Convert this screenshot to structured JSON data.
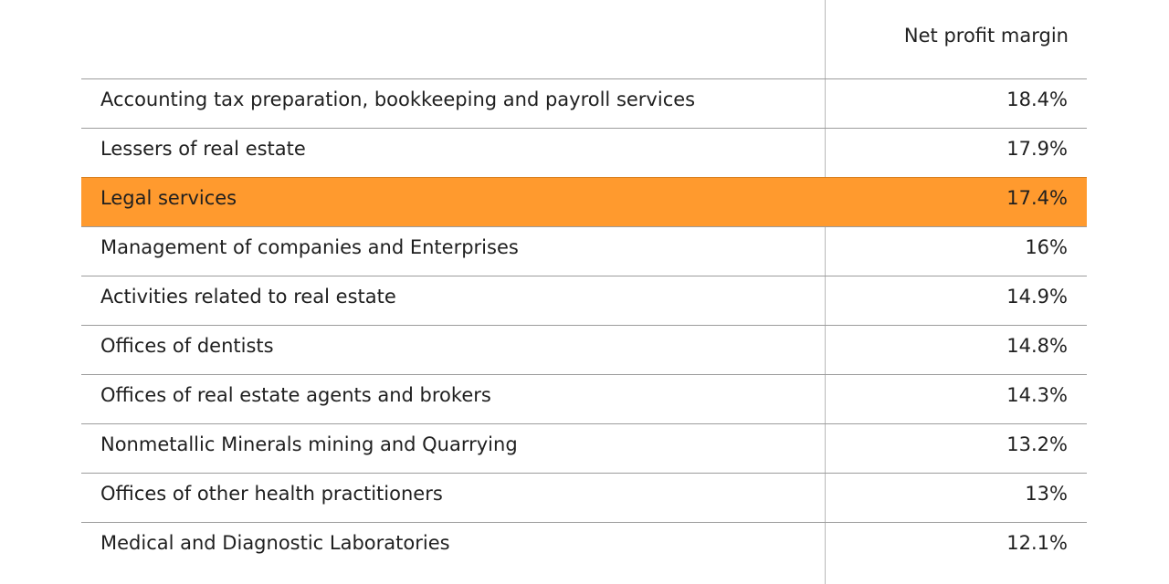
{
  "chart_data": {
    "type": "table",
    "columns": [
      "",
      "Net profit margin"
    ],
    "rows": [
      {
        "name": "Accounting tax preparation, bookkeeping and payroll services",
        "value_label": "18.4%",
        "value": 18.4,
        "highlight": false
      },
      {
        "name": "Lessers of real estate",
        "value_label": "17.9%",
        "value": 17.9,
        "highlight": false
      },
      {
        "name": "Legal services",
        "value_label": "17.4%",
        "value": 17.4,
        "highlight": true
      },
      {
        "name": "Management of companies and Enterprises",
        "value_label": "16%",
        "value": 16,
        "highlight": false
      },
      {
        "name": "Activities related to real estate",
        "value_label": "14.9%",
        "value": 14.9,
        "highlight": false
      },
      {
        "name": "Offices of dentists",
        "value_label": "14.8%",
        "value": 14.8,
        "highlight": false
      },
      {
        "name": "Offices of real estate agents and brokers",
        "value_label": "14.3%",
        "value": 14.3,
        "highlight": false
      },
      {
        "name": "Nonmetallic Minerals mining and Quarrying",
        "value_label": "13.2%",
        "value": 13.2,
        "highlight": false
      },
      {
        "name": "Offices of other health practitioners",
        "value_label": "13%",
        "value": 13,
        "highlight": false
      },
      {
        "name": "Medical and Diagnostic Laboratories",
        "value_label": "12.1%",
        "value": 12.1,
        "highlight": false
      }
    ],
    "highlight_color": "#ff9a2e"
  }
}
